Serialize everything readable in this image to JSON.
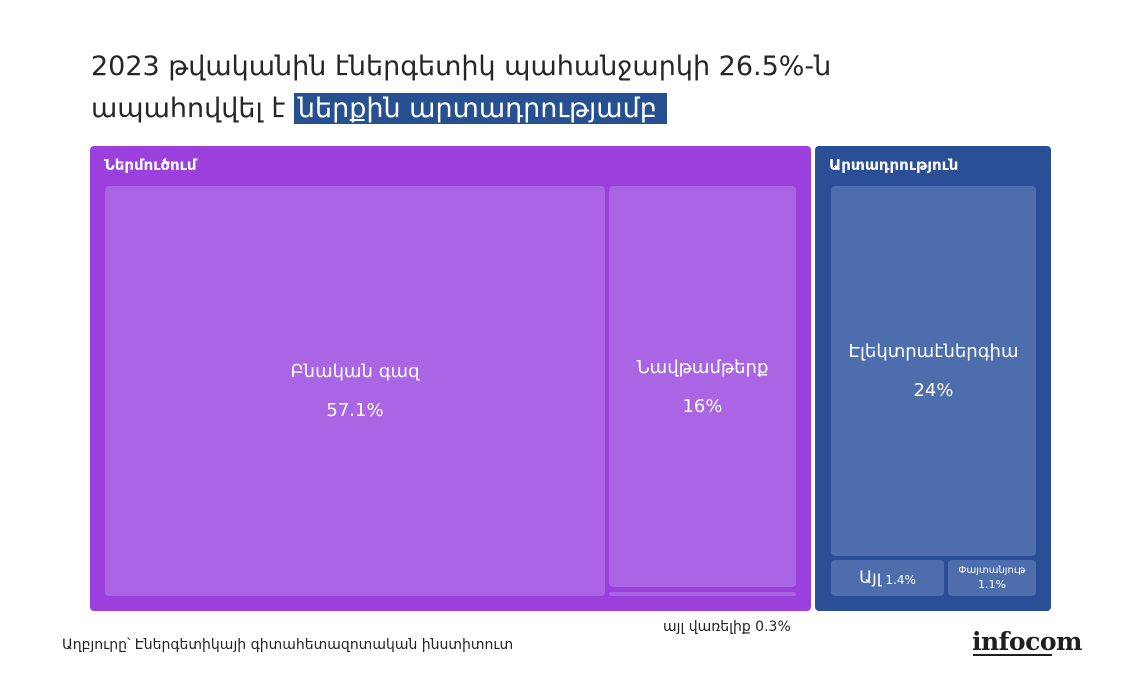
{
  "title": {
    "line1": "2023 թվականին էներգետիկ պահանջարկի 26.5%-ն",
    "line2": "ապահովվել է ",
    "highlight": "ներքին արտադրությամբ"
  },
  "chart_data": {
    "type": "treemap",
    "title": "2023 թվականին էներգետիկ պահանջարկի 26.5%-ն ապահովվել է ներքին արտադրությամբ",
    "unit": "%",
    "groups": [
      {
        "name": "Ներմուծում",
        "color": "#9b3fdd",
        "items": [
          {
            "name": "Բնական գազ",
            "value": 57.1,
            "label": "57.1%",
            "color": "#a965e3"
          },
          {
            "name": "Նավթամթերք",
            "value": 16,
            "label": "16%",
            "color": "#a965e3"
          },
          {
            "name": "այլ վառելիք",
            "value": 0.3,
            "label": "0.3%",
            "color": "#a965e3"
          }
        ]
      },
      {
        "name": "Արտադրություն",
        "color": "#2a4f96",
        "items": [
          {
            "name": "Էլեկտրաէներգիա",
            "value": 24,
            "label": "24%",
            "color": "#4e6dad"
          },
          {
            "name": "Այլ",
            "value": 1.4,
            "label": "1.4%",
            "color": "#4e6dad"
          },
          {
            "name": "Փայտանյութ",
            "value": 1.1,
            "label": "1.1%",
            "color": "#4e6dad"
          }
        ]
      }
    ],
    "annotation": "այլ վառելիք 0.3%"
  },
  "source": "Աղբյուրը՝ Էներգետիկայի գիտահետազոտական ինստիտուտ",
  "logo": "infocom"
}
